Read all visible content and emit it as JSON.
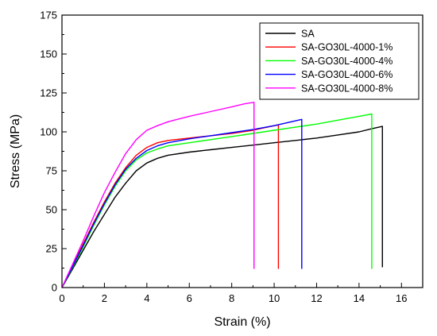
{
  "chart_data": {
    "type": "line",
    "title": "",
    "xlabel": "Strain (%)",
    "ylabel": "Stress (MPa)",
    "xlim": [
      0,
      17
    ],
    "ylim": [
      0,
      175
    ],
    "xticks": [
      "0",
      "2",
      "4",
      "6",
      "8",
      "10",
      "12",
      "14",
      "16"
    ],
    "yticks": [
      "0",
      "25",
      "50",
      "75",
      "100",
      "125",
      "150",
      "175"
    ],
    "grid": false,
    "legend_position": "top-right",
    "series": [
      {
        "name": "SA",
        "color": "#000000",
        "points": [
          [
            0,
            0
          ],
          [
            0.5,
            12
          ],
          [
            1,
            24
          ],
          [
            1.5,
            36
          ],
          [
            2,
            47
          ],
          [
            2.5,
            58
          ],
          [
            3,
            67
          ],
          [
            3.5,
            75
          ],
          [
            4,
            80
          ],
          [
            4.5,
            83
          ],
          [
            5,
            85
          ],
          [
            6,
            87
          ],
          [
            7,
            88.5
          ],
          [
            8,
            90
          ],
          [
            9,
            91.5
          ],
          [
            10,
            93
          ],
          [
            11,
            94.5
          ],
          [
            12,
            96
          ],
          [
            13,
            98
          ],
          [
            14,
            100
          ],
          [
            14.6,
            102
          ],
          [
            15.1,
            103.5
          ],
          [
            15.1,
            13
          ]
        ]
      },
      {
        "name": "SA-GO30L-4000-1%",
        "color": "#ff0000",
        "points": [
          [
            0,
            0
          ],
          [
            0.5,
            14
          ],
          [
            1,
            28
          ],
          [
            1.5,
            42
          ],
          [
            2,
            55
          ],
          [
            2.5,
            67
          ],
          [
            3,
            77
          ],
          [
            3.5,
            85
          ],
          [
            4,
            90
          ],
          [
            4.5,
            93
          ],
          [
            5,
            94.5
          ],
          [
            6,
            96
          ],
          [
            7,
            97.5
          ],
          [
            8,
            99
          ],
          [
            9,
            101
          ],
          [
            9.5,
            102.5
          ],
          [
            10.2,
            104.5
          ],
          [
            10.2,
            12
          ]
        ]
      },
      {
        "name": "SA-GO30L-4000-4%",
        "color": "#00ff00",
        "points": [
          [
            0,
            0
          ],
          [
            0.5,
            13
          ],
          [
            1,
            26
          ],
          [
            1.5,
            40
          ],
          [
            2,
            53
          ],
          [
            2.5,
            65
          ],
          [
            3,
            75
          ],
          [
            3.5,
            82
          ],
          [
            4,
            86.5
          ],
          [
            4.5,
            89
          ],
          [
            5,
            91
          ],
          [
            6,
            93
          ],
          [
            7,
            95
          ],
          [
            8,
            97
          ],
          [
            9,
            99
          ],
          [
            10,
            101
          ],
          [
            11,
            103
          ],
          [
            12,
            105
          ],
          [
            13,
            107.5
          ],
          [
            14,
            110
          ],
          [
            14.6,
            111.5
          ],
          [
            14.6,
            12
          ]
        ]
      },
      {
        "name": "SA-GO30L-4000-6%",
        "color": "#0000ff",
        "points": [
          [
            0,
            0
          ],
          [
            0.5,
            13.5
          ],
          [
            1,
            27
          ],
          [
            1.5,
            41
          ],
          [
            2,
            54
          ],
          [
            2.5,
            66
          ],
          [
            3,
            76
          ],
          [
            3.5,
            83
          ],
          [
            4,
            88
          ],
          [
            4.5,
            91
          ],
          [
            5,
            93
          ],
          [
            6,
            95.5
          ],
          [
            7,
            97.5
          ],
          [
            8,
            99.5
          ],
          [
            9,
            101.5
          ],
          [
            10,
            104
          ],
          [
            10.5,
            105.5
          ],
          [
            11.3,
            108
          ],
          [
            11.3,
            12
          ]
        ]
      },
      {
        "name": "SA-GO30L-4000-8%",
        "color": "#ff00ff",
        "points": [
          [
            0,
            0
          ],
          [
            0.5,
            15
          ],
          [
            1,
            30
          ],
          [
            1.5,
            46
          ],
          [
            2,
            61
          ],
          [
            2.5,
            74
          ],
          [
            3,
            86
          ],
          [
            3.5,
            95
          ],
          [
            4,
            101
          ],
          [
            4.5,
            104
          ],
          [
            5,
            106.5
          ],
          [
            6,
            110
          ],
          [
            7,
            113
          ],
          [
            8,
            116
          ],
          [
            8.6,
            118
          ],
          [
            9.05,
            119
          ],
          [
            9.05,
            12
          ]
        ]
      }
    ]
  }
}
